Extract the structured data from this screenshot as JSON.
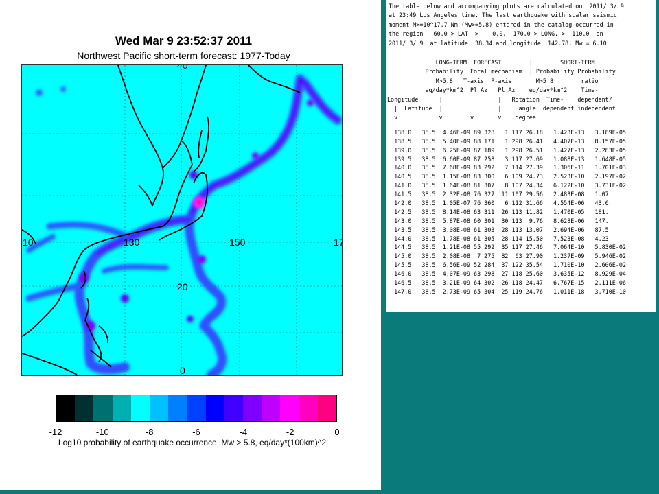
{
  "map": {
    "title": "Wed Mar  9 23:52:37 2011",
    "subtitle": "Northwest Pacific short-term forecast: 1977-Today",
    "grid_labels": [
      "10",
      "130",
      "150",
      "17",
      "20",
      "0",
      "40"
    ],
    "background_color": "#00ffff",
    "coast_color": "#000000"
  },
  "colorbar": {
    "colors": [
      "#000000",
      "#003030",
      "#007070",
      "#00b0b0",
      "#00ffff",
      "#00c0ff",
      "#0080ff",
      "#0040ff",
      "#0000ff",
      "#4000ff",
      "#8000ff",
      "#c000ff",
      "#ff00ff",
      "#ff00c0",
      "#ff0080"
    ],
    "ticks": [
      "-12",
      "-10",
      "-8",
      "-6",
      "-4",
      "-2",
      "0"
    ],
    "caption": "Log10 probability of earthquake occurrence, Mw > 5.8, eq/day*(100km)^2"
  },
  "report": {
    "intro": [
      "The table below and accompanying plots are calculated on  2011/ 3/ 9",
      "at 23:49 Los Angeles time. The last earthquake with scalar seismic",
      "moment M>=10^17.7 Nm (Mw>=5.8) entered in the catalog occurred in",
      "the region   60.0 > LAT. >    0.0,  170.0 > LONG. >  110.0  on",
      "2011/ 3/ 9  at latitude  38.34 and longitude  142.78, Mw = 6.10"
    ],
    "header": [
      "              LONG-TERM  FORECAST        |        SHORT-TERM",
      "           Probability  Focal mechanism  | Probability Probability",
      "              M>5.8   T-axis  P-axis       M>5.8        ratio",
      "           eq/day*km^2  Pl Az   Pl Az    eq/day*km^2    Time-",
      "Longitude      |        |       |   Rotation  Time-    dependent/",
      "  |  Latitude  |        |       |     angle  dependent independent",
      "  v            v        v       v    degree"
    ],
    "rows": [
      "  138.0   38.5  4.46E-09 89 328   1 117 26.18   1.423E-13   3.189E-05",
      "  138.5   38.5  5.40E-09 88 171   1 298 26.41   4.407E-13   8.157E-05",
      "  139.0   38.5  6.25E-09 87 189   1 298 26.51   1.427E-13   2.283E-05",
      "  139.5   38.5  6.60E-09 87 258   3 117 27.69   1.088E-13   1.648E-05",
      "  140.0   38.5  7.68E-09 83 292   7 114 27.39   1.306E-11   1.701E-03",
      "  140.5   38.5  1.15E-08 83 300   6 109 24.73   2.523E-10   2.197E-02",
      "  141.0   38.5  1.64E-08 81 307   8 107 24.34   6.122E-10   3.731E-02",
      "  141.5   38.5  2.32E-08 76 327  11 107 29.56   2.483E-08   1.07",
      "  142.0   38.5  1.05E-07 76 360   6 112 31.66   4.554E-06   43.6",
      "  142.5   38.5  8.14E-08 63 311  26 113 11.82   1.470E-05   181.",
      "  143.0   38.5  5.87E-08 60 301  30 113  9.76   8.628E-06   147.",
      "  143.5   38.5  3.08E-08 61 303  28 113 13.07   2.694E-06   87.5",
      "  144.0   38.5  1.78E-08 61 305  28 114 15.50   7.523E-08   4.23",
      "  144.5   38.5  1.21E-08 55 292  35 117 27.46   7.064E-10   5.830E-02",
      "  145.0   38.5  2.08E-08  7 275  82  63 27.90   1.237E-09   5.946E-02",
      "  145.5   38.5  6.56E-09 52 284  37 122 35.54   1.710E-10   2.606E-02",
      "  146.0   38.5  4.07E-09 63 298  27 118 25.60   3.635E-12   8.929E-04",
      "  146.5   38.5  3.21E-09 64 302  26 118 24.47   6.767E-15   2.111E-06",
      "  147.0   38.5  2.73E-09 65 304  25 119 24.76   1.011E-18   3.710E-10"
    ]
  },
  "colors": {
    "panel": "#0a7a7a"
  }
}
